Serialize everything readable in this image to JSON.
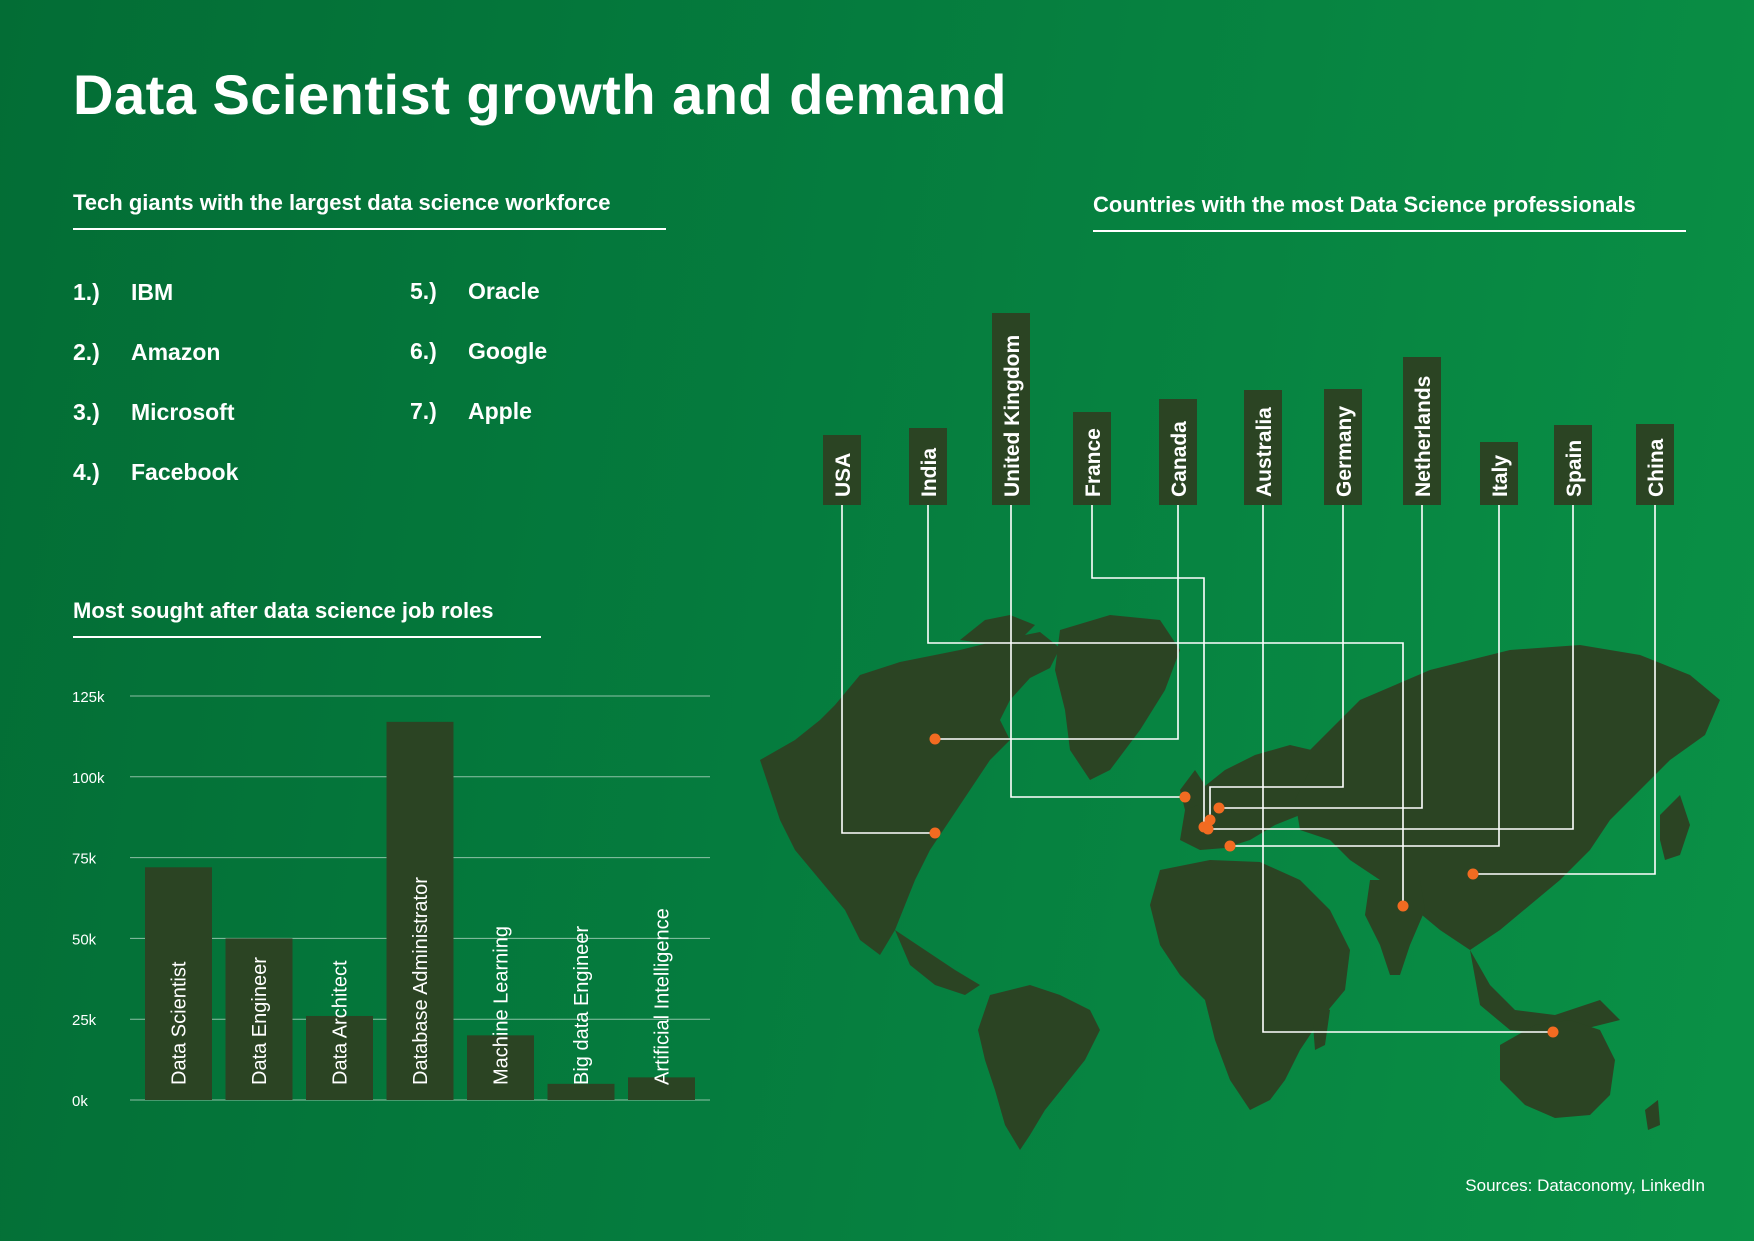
{
  "title": "Data Scientist growth and demand",
  "tech_giants": {
    "heading": "Tech giants with the largest data science workforce",
    "items": [
      {
        "num": "1.)",
        "name": "IBM"
      },
      {
        "num": "2.)",
        "name": "Amazon"
      },
      {
        "num": "3.)",
        "name": "Microsoft"
      },
      {
        "num": "4.)",
        "name": "Facebook"
      },
      {
        "num": "5.)",
        "name": "Oracle"
      },
      {
        "num": "6.)",
        "name": "Google"
      },
      {
        "num": "7.)",
        "name": "Apple"
      }
    ]
  },
  "job_roles": {
    "heading": "Most sought after data science job roles"
  },
  "countries": {
    "heading": "Countries with the most Data Science professionals",
    "items": [
      "USA",
      "India",
      "United Kingdom",
      "France",
      "Canada",
      "Australia",
      "Germany",
      "Netherlands",
      "Italy",
      "Spain",
      "China"
    ]
  },
  "sources": "Sources: Dataconomy, LinkedIn",
  "colors": {
    "background_start": "#036d35",
    "background_end": "#0a9146",
    "dark": "#2b4423",
    "marker": "#f26b21",
    "text": "#ffffff"
  },
  "chart_data": {
    "type": "bar",
    "categories": [
      "Data Scientist",
      "Data Engineer",
      "Data Architect",
      "Database Administrator",
      "Machine Learning",
      "Big data Engineer",
      "Artificial Intelligence"
    ],
    "values": [
      72000,
      50000,
      26000,
      117000,
      20000,
      5000,
      7000
    ],
    "yticks": [
      "0k",
      "25k",
      "50k",
      "75k",
      "100k",
      "125k"
    ],
    "ylim": [
      0,
      125000
    ],
    "grid": true,
    "xlabel": "",
    "ylabel": ""
  }
}
